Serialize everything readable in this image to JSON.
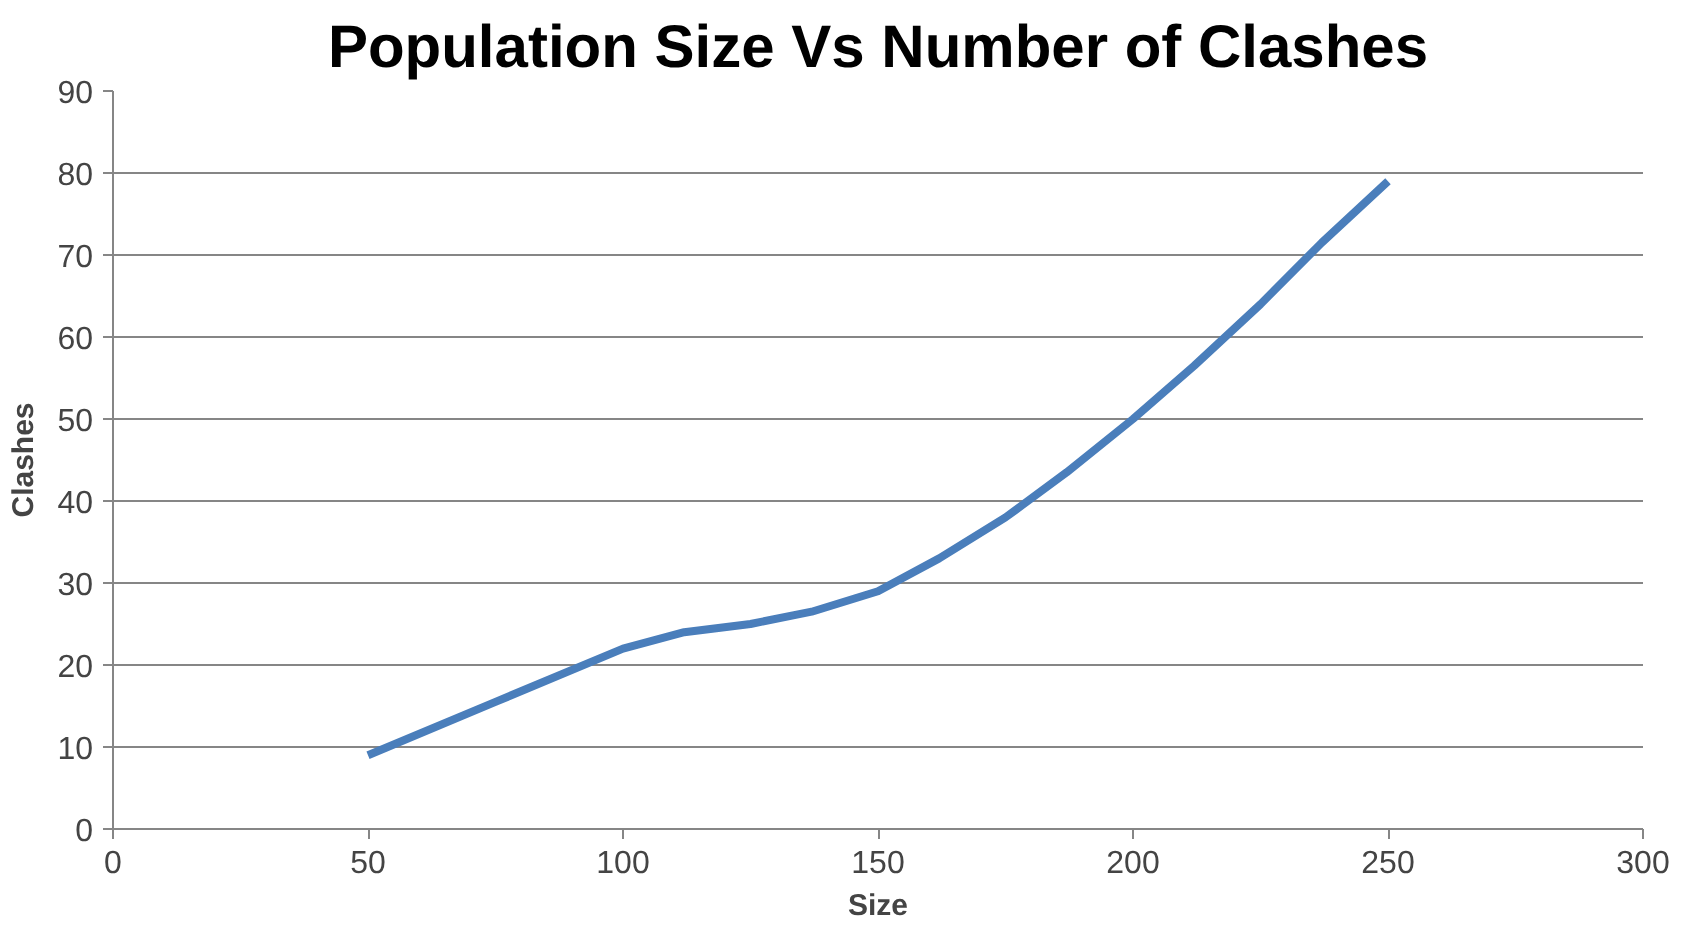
{
  "chart_data": {
    "type": "line",
    "title": "Population Size Vs Number of Clashes",
    "xlabel": "Size",
    "ylabel": "Clashes",
    "x": [
      50,
      75,
      100,
      112,
      125,
      137,
      150,
      162,
      175,
      187,
      200,
      212,
      225,
      237,
      250
    ],
    "series": [
      {
        "color": "#4a7ebb",
        "values": [
          9,
          15.5,
          22,
          24,
          25,
          26.5,
          29,
          33,
          38,
          43.5,
          50,
          56.5,
          64,
          71.5,
          79
        ]
      }
    ],
    "xlim": [
      0,
      300
    ],
    "xticks": [
      0,
      50,
      100,
      150,
      200,
      250,
      300
    ],
    "ylim": [
      0,
      90
    ],
    "yticks": [
      0,
      10,
      20,
      30,
      40,
      50,
      60,
      70,
      80,
      90
    ],
    "grid": "y",
    "marker": "none",
    "line_style": "solid"
  }
}
